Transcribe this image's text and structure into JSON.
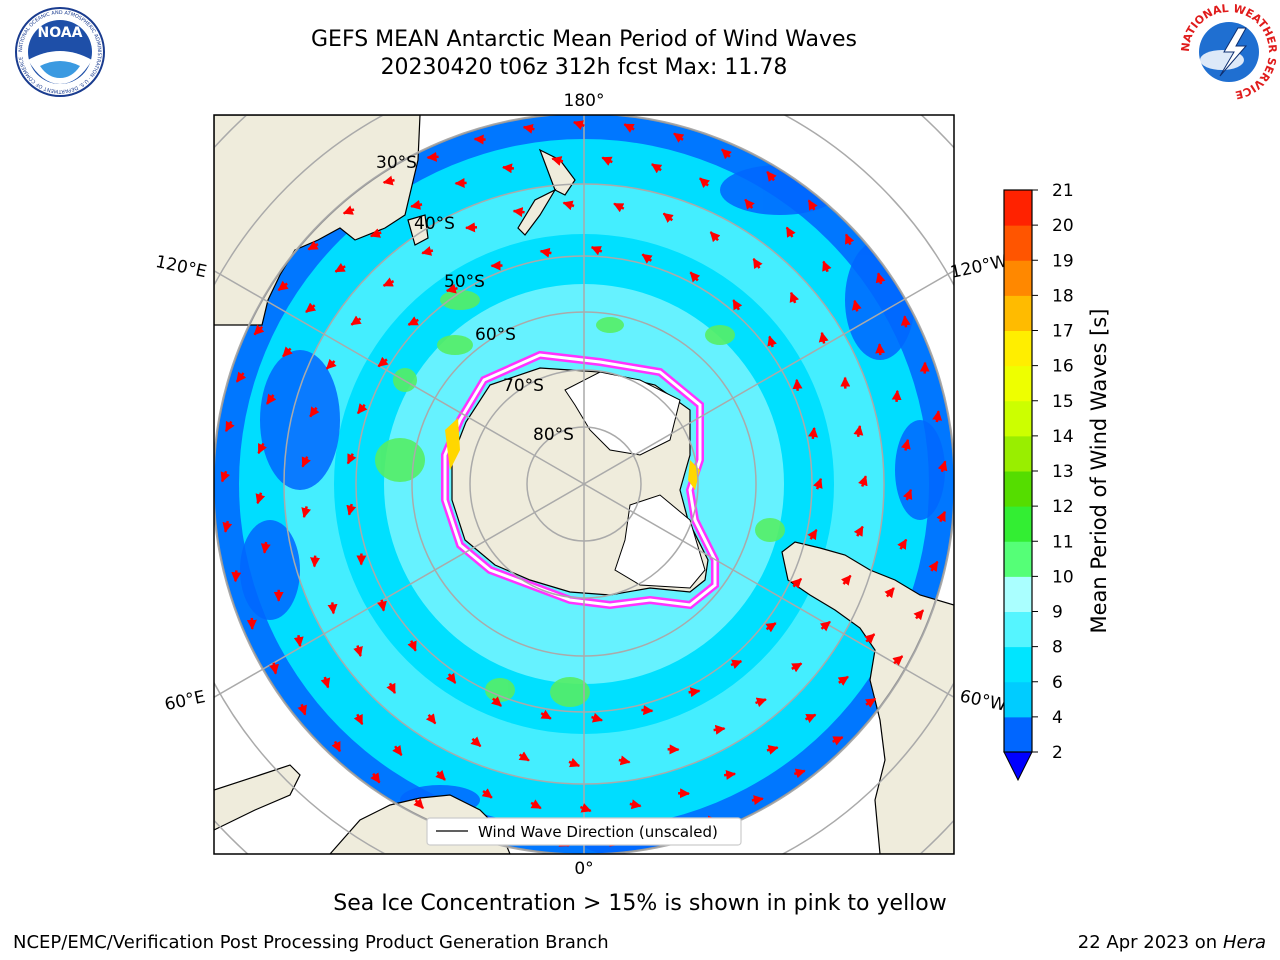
{
  "title": {
    "line1": "GEFS MEAN Antarctic Mean Period of Wind Waves",
    "line2": "20230420 t06z 312h fcst   Max: 11.78"
  },
  "map": {
    "projection": "south-polar-stereographic",
    "lon_labels": [
      "180°",
      "120°E",
      "120°W",
      "60°E",
      "60°W",
      "0°"
    ],
    "lat_labels": [
      "30°S",
      "40°S",
      "50°S",
      "60°S",
      "70°S",
      "80°S"
    ],
    "legend": "Wind Wave Direction (unscaled)",
    "arrow_color": "#ff0000",
    "land_color": "#efecdc",
    "ice_colors": [
      "#ff33ff",
      "#ffff00"
    ]
  },
  "colorbar": {
    "label": "Mean Period of Wind Waves [s]",
    "ticks": [
      "2",
      "4",
      "6",
      "8",
      "9",
      "10",
      "11",
      "12",
      "13",
      "14",
      "15",
      "16",
      "17",
      "18",
      "19",
      "20",
      "21"
    ],
    "colors": [
      "#0066ff",
      "#00ccff",
      "#00e5ff",
      "#55f5ff",
      "#aaffff",
      "#55ff77",
      "#33ee33",
      "#55dd00",
      "#99ee00",
      "#ccff00",
      "#eeff00",
      "#ffee00",
      "#ffbb00",
      "#ff8800",
      "#ff5500",
      "#ff2200",
      "#ff0000"
    ],
    "under_color": "#0000ff"
  },
  "footnote": "Sea Ice Concentration > 15% is shown in pink to yellow",
  "credits": {
    "left": "NCEP/EMC/Verification Post Processing Product Generation Branch",
    "right_prefix": "22 Apr 2023 on ",
    "right_machine": "Hera"
  },
  "logos": {
    "left": "NOAA",
    "left_ring": "NATIONAL OCEANIC AND ATMOSPHERIC ADMINISTRATION · U.S. DEPARTMENT OF COMMERCE",
    "right_ring": "NATIONAL WEATHER SERVICE"
  }
}
